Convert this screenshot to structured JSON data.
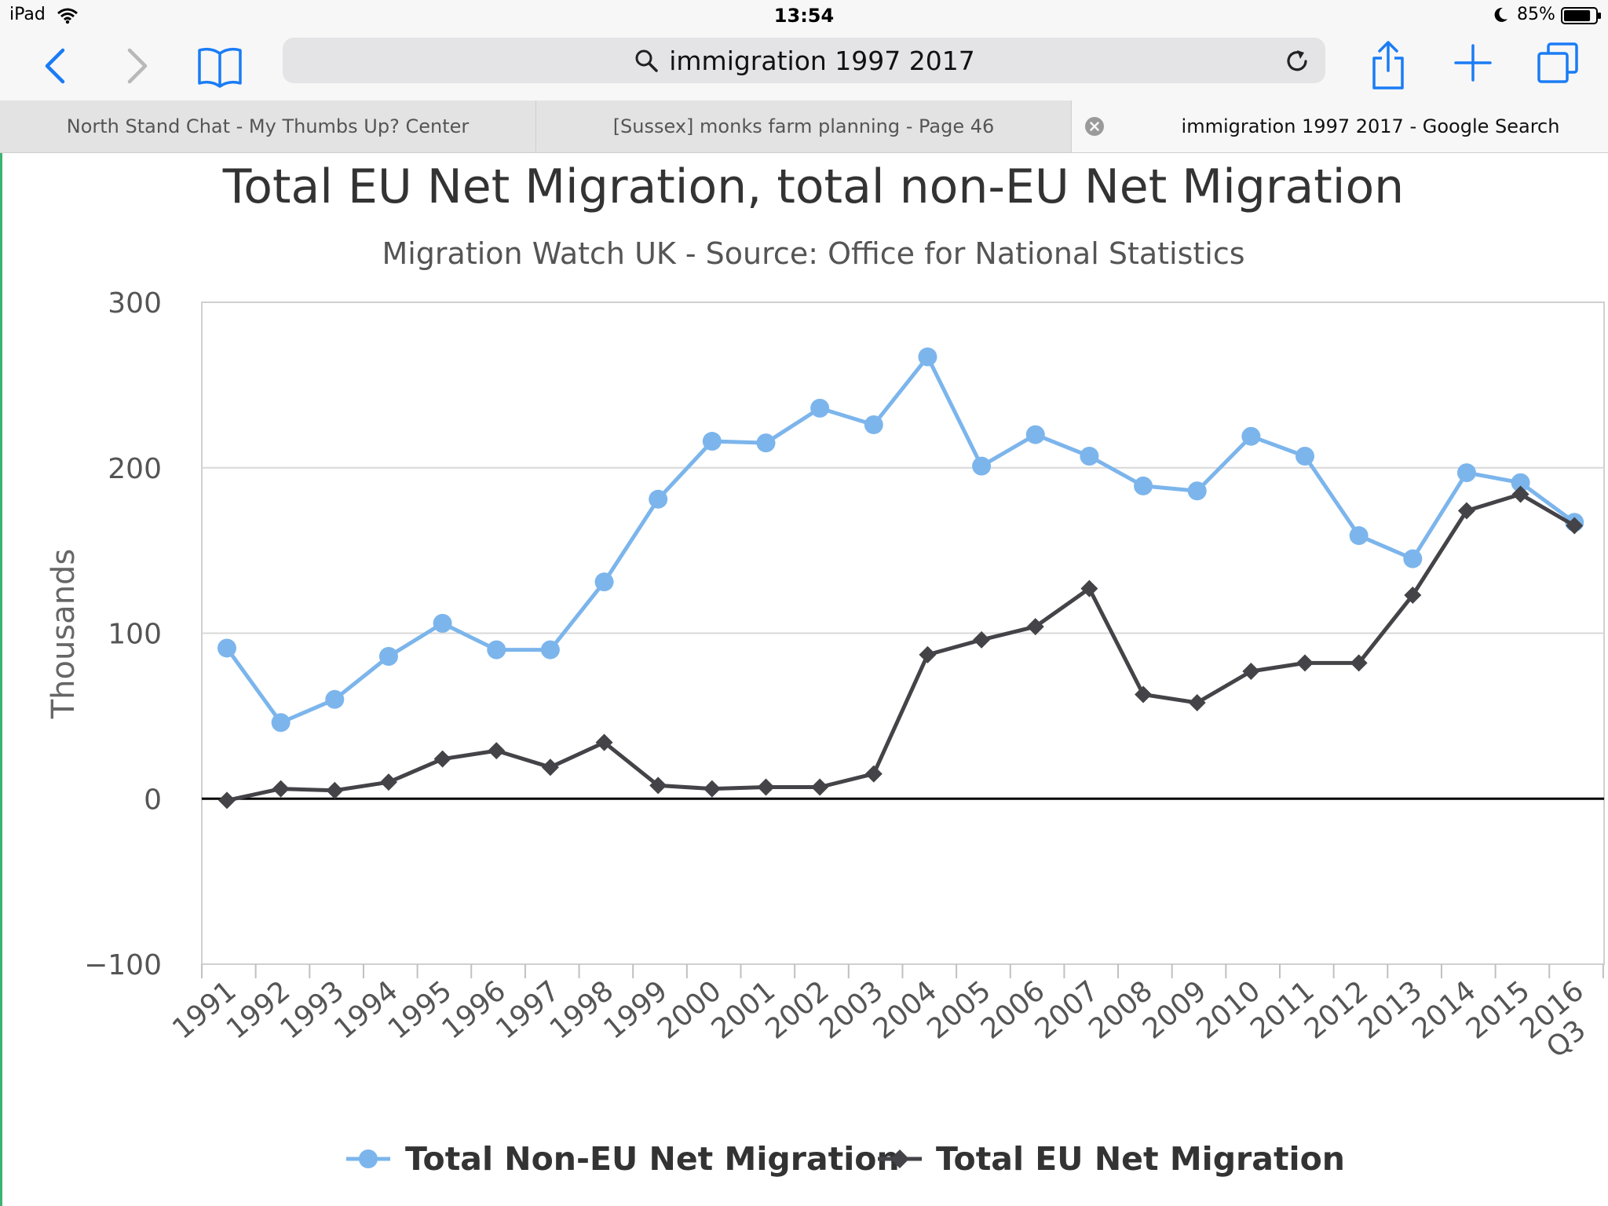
{
  "status_bar": {
    "device": "iPad",
    "time": "13:54",
    "battery": "85%",
    "battery_level": 0.85
  },
  "toolbar": {
    "address_text": "immigration 1997 2017",
    "icons": [
      "back-icon",
      "forward-icon",
      "bookmarks-icon",
      "search-icon",
      "reload-icon",
      "share-icon",
      "new-tab-icon",
      "tabs-icon"
    ]
  },
  "tabs": [
    {
      "label": "North Stand Chat - My Thumbs Up? Center"
    },
    {
      "label": "[Sussex] monks farm planning - Page 46"
    },
    {
      "label": "immigration 1997 2017 - Google Search",
      "active": true
    }
  ],
  "colors": {
    "non_eu": "#7cb5ec",
    "eu": "#434348",
    "grid": "#d8d8d8",
    "zero_line": "#000000"
  },
  "chart_data": {
    "type": "line",
    "title": "Total EU Net Migration, total non-EU Net Migration",
    "subtitle": "Migration Watch UK - Source: Office for National Statistics",
    "ylabel": "Thousands",
    "xlabel": "",
    "ylim": [
      -100,
      300
    ],
    "yticks": [
      300,
      200,
      100,
      0,
      -100
    ],
    "grid": true,
    "legend": "bottom-center",
    "categories": [
      "1991",
      "1992",
      "1993",
      "1994",
      "1995",
      "1996",
      "1997",
      "1998",
      "1999",
      "2000",
      "2001",
      "2002",
      "2003",
      "2004",
      "2005",
      "2006",
      "2007",
      "2008",
      "2009",
      "2010",
      "2011",
      "2012",
      "2013",
      "2014",
      "2015",
      "Q3 2016"
    ],
    "series": [
      {
        "name": "Total Non-EU Net Migration",
        "marker": "circle",
        "values": [
          91,
          46,
          60,
          86,
          106,
          90,
          90,
          131,
          181,
          216,
          215,
          236,
          226,
          267,
          201,
          220,
          207,
          189,
          186,
          219,
          207,
          159,
          145,
          197,
          191,
          167
        ]
      },
      {
        "name": "Total EU Net Migration",
        "marker": "diamond",
        "values": [
          -1,
          6,
          5,
          10,
          24,
          29,
          19,
          34,
          8,
          6,
          7,
          7,
          15,
          87,
          96,
          104,
          127,
          63,
          58,
          77,
          82,
          82,
          123,
          174,
          184,
          165
        ]
      }
    ]
  }
}
